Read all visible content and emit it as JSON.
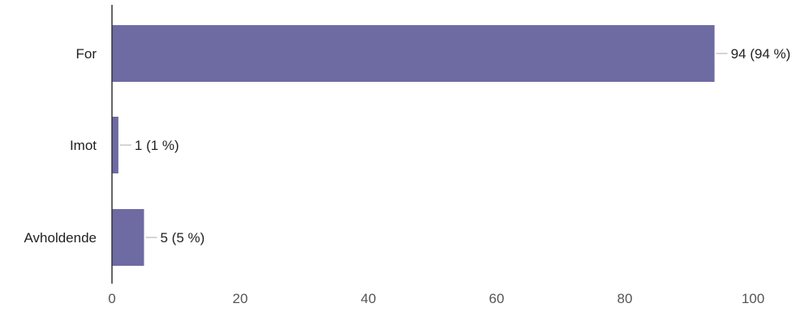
{
  "chart_data": {
    "type": "bar",
    "orientation": "horizontal",
    "categories": [
      "For",
      "Imot",
      "Avholdende"
    ],
    "values": [
      94,
      1,
      5
    ],
    "data_labels": [
      "94 (94 %)",
      "1 (1 %)",
      "5 (5 %)"
    ],
    "title": "",
    "xlabel": "",
    "ylabel": "",
    "xlim": [
      0,
      100
    ],
    "x_ticks": [
      0,
      20,
      40,
      60,
      80,
      100
    ],
    "x_tick_labels": [
      "0",
      "20",
      "40",
      "60",
      "80",
      "100"
    ],
    "grid": false,
    "legend": "none",
    "bar_color": "#6e6ba3",
    "axis_color": "#333333"
  }
}
